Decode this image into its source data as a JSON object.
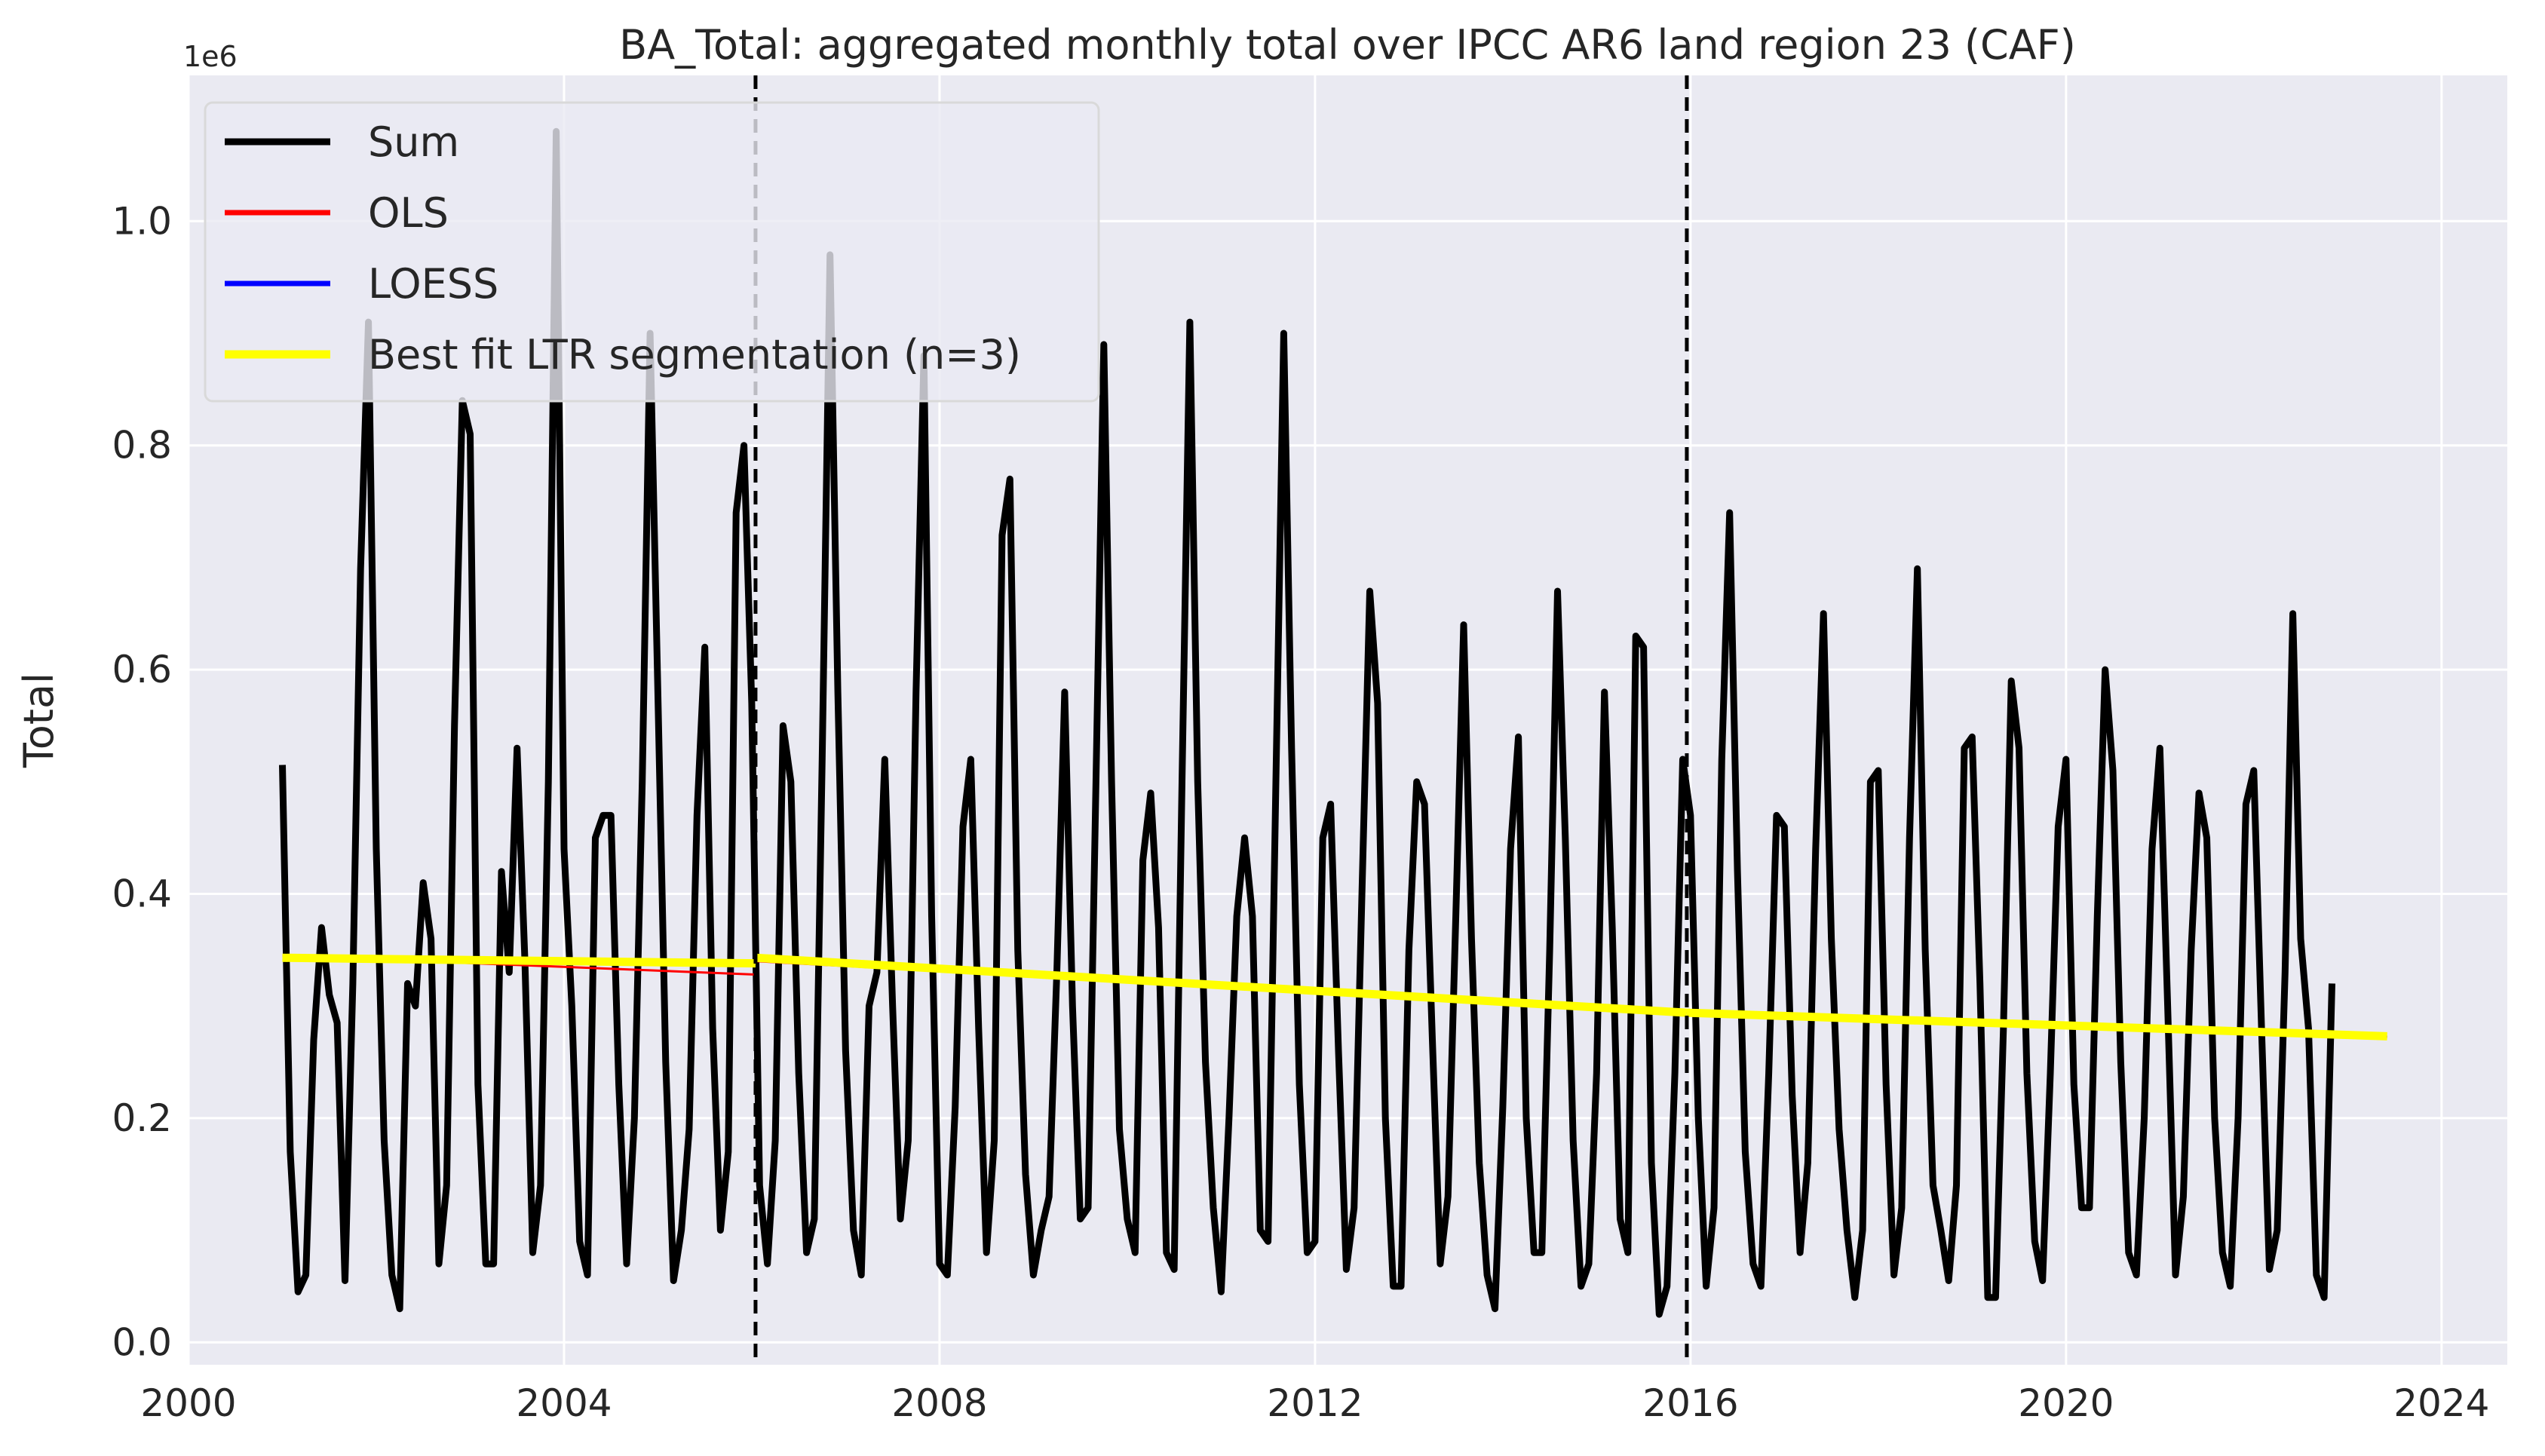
{
  "chart_data": {
    "type": "line",
    "title": "BA_Total: aggregated monthly total over IPCC AR6 land region 23 (CAF)",
    "ylabel": "Total",
    "xlabel": "",
    "y_offset_label": "1e6",
    "y_scale_factor": 1000000,
    "xlim": [
      2000.0,
      2024.7
    ],
    "ylim": [
      -0.02,
      1.13
    ],
    "x_ticks": [
      2000,
      2004,
      2008,
      2012,
      2016,
      2020,
      2024
    ],
    "x_tick_labels": [
      "2000",
      "2004",
      "2008",
      "2012",
      "2016",
      "2020",
      "2024"
    ],
    "y_ticks": [
      0.0,
      0.2,
      0.4,
      0.6,
      0.8,
      1.0
    ],
    "y_tick_labels": [
      "0.0",
      "0.2",
      "0.4",
      "0.6",
      "0.8",
      "1.0"
    ],
    "grid": true,
    "background": "#eaeaf2",
    "legend_position": "top-left",
    "breakpoints": [
      2006.04,
      2015.96
    ],
    "series": [
      {
        "name": "Sum",
        "color": "#000000",
        "x_start": 2001.0,
        "x_step": 0.08333,
        "values": [
          0.515,
          0.17,
          0.045,
          0.06,
          0.27,
          0.37,
          0.31,
          0.285,
          0.055,
          0.32,
          0.69,
          0.91,
          0.44,
          0.18,
          0.06,
          0.03,
          0.32,
          0.3,
          0.41,
          0.36,
          0.07,
          0.14,
          0.55,
          0.84,
          0.81,
          0.23,
          0.07,
          0.07,
          0.42,
          0.33,
          0.53,
          0.34,
          0.08,
          0.14,
          0.5,
          1.08,
          0.44,
          0.3,
          0.09,
          0.06,
          0.45,
          0.47,
          0.47,
          0.23,
          0.07,
          0.2,
          0.5,
          0.9,
          0.58,
          0.25,
          0.055,
          0.1,
          0.19,
          0.47,
          0.62,
          0.28,
          0.1,
          0.17,
          0.74,
          0.8,
          0.57,
          0.14,
          0.07,
          0.18,
          0.55,
          0.5,
          0.24,
          0.08,
          0.11,
          0.52,
          0.97,
          0.58,
          0.26,
          0.1,
          0.06,
          0.3,
          0.33,
          0.52,
          0.3,
          0.11,
          0.18,
          0.58,
          0.88,
          0.38,
          0.07,
          0.06,
          0.21,
          0.46,
          0.52,
          0.28,
          0.08,
          0.18,
          0.72,
          0.77,
          0.35,
          0.15,
          0.06,
          0.1,
          0.13,
          0.33,
          0.58,
          0.3,
          0.11,
          0.12,
          0.5,
          0.89,
          0.5,
          0.19,
          0.11,
          0.08,
          0.43,
          0.49,
          0.37,
          0.08,
          0.065,
          0.5,
          0.91,
          0.5,
          0.25,
          0.12,
          0.045,
          0.2,
          0.38,
          0.45,
          0.38,
          0.1,
          0.09,
          0.5,
          0.9,
          0.53,
          0.23,
          0.08,
          0.09,
          0.45,
          0.48,
          0.26,
          0.065,
          0.12,
          0.4,
          0.67,
          0.57,
          0.2,
          0.05,
          0.05,
          0.35,
          0.5,
          0.48,
          0.27,
          0.07,
          0.13,
          0.38,
          0.64,
          0.36,
          0.16,
          0.06,
          0.03,
          0.21,
          0.44,
          0.54,
          0.2,
          0.08,
          0.08,
          0.35,
          0.67,
          0.45,
          0.18,
          0.05,
          0.07,
          0.24,
          0.58,
          0.37,
          0.11,
          0.08,
          0.63,
          0.62,
          0.16,
          0.025,
          0.05,
          0.24,
          0.52,
          0.47,
          0.2,
          0.05,
          0.12,
          0.52,
          0.74,
          0.42,
          0.17,
          0.07,
          0.05,
          0.24,
          0.47,
          0.46,
          0.22,
          0.08,
          0.16,
          0.44,
          0.65,
          0.36,
          0.19,
          0.1,
          0.04,
          0.1,
          0.5,
          0.51,
          0.23,
          0.06,
          0.12,
          0.45,
          0.69,
          0.35,
          0.14,
          0.1,
          0.055,
          0.14,
          0.53,
          0.54,
          0.32,
          0.04,
          0.04,
          0.28,
          0.59,
          0.53,
          0.24,
          0.09,
          0.055,
          0.24,
          0.46,
          0.52,
          0.23,
          0.12,
          0.12,
          0.38,
          0.6,
          0.51,
          0.25,
          0.08,
          0.06,
          0.2,
          0.44,
          0.53,
          0.3,
          0.06,
          0.13,
          0.35,
          0.49,
          0.45,
          0.2,
          0.08,
          0.05,
          0.2,
          0.48,
          0.51,
          0.28,
          0.065,
          0.1,
          0.33,
          0.65,
          0.36,
          0.28,
          0.06,
          0.04,
          0.32
        ]
      },
      {
        "name": "OLS",
        "color": "#ff0000",
        "segments": [
          {
            "x": [
              2001.0,
              2006.04
            ],
            "y": [
              0.345,
              0.328
            ]
          },
          {
            "x": [
              2006.04,
              2015.96
            ],
            "y": [
              0.34,
              0.295
            ]
          },
          {
            "x": [
              2015.96,
              2023.42
            ],
            "y": [
              0.295,
              0.272
            ]
          }
        ]
      },
      {
        "name": "LOESS",
        "color": "#0000ff",
        "segments": [
          {
            "x": [
              2001.0,
              2006.04
            ],
            "y": [
              0.342,
              0.336
            ]
          },
          {
            "x": [
              2006.04,
              2015.96
            ],
            "y": [
              0.342,
              0.294
            ]
          },
          {
            "x": [
              2015.96,
              2023.42
            ],
            "y": [
              0.293,
              0.273
            ]
          }
        ]
      },
      {
        "name": "Best fit LTR segmentation (n=3)",
        "color": "#ffff00",
        "segments": [
          {
            "x": [
              2001.0,
              2006.04
            ],
            "y": [
              0.343,
              0.338
            ]
          },
          {
            "x": [
              2006.04,
              2015.96
            ],
            "y": [
              0.343,
              0.294
            ]
          },
          {
            "x": [
              2015.96,
              2023.42
            ],
            "y": [
              0.294,
              0.273
            ]
          }
        ]
      }
    ]
  }
}
